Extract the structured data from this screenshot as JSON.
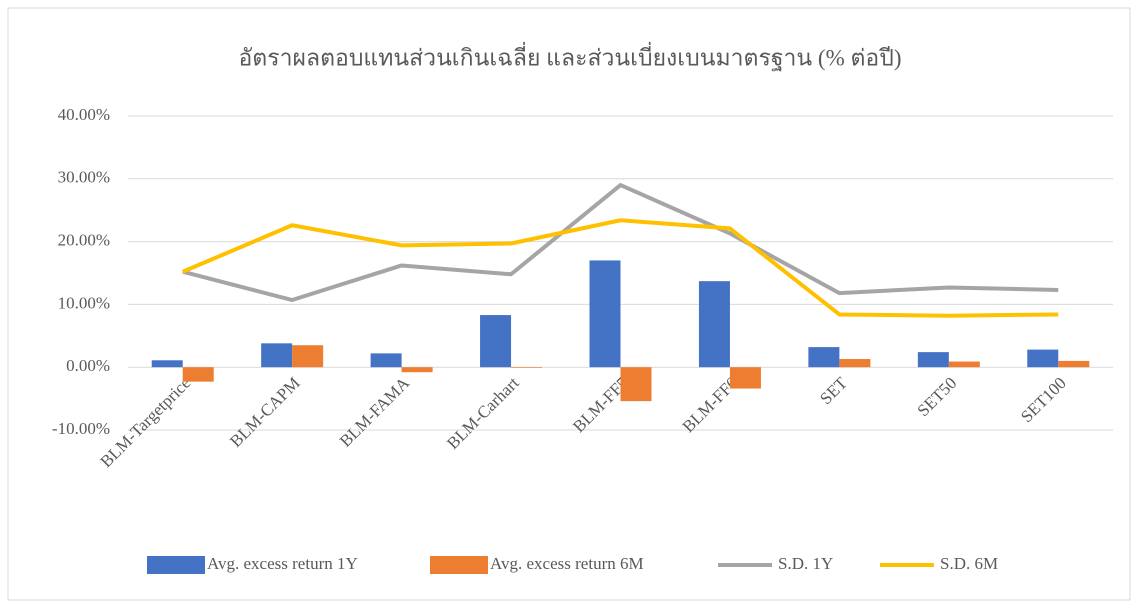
{
  "chart_data": {
    "type": "bar_line",
    "title": "อัตราผลตอบแทนส่วนเกินเฉลี่ย และส่วนเบี่ยงเบนมาตรฐาน (% ต่อปี)",
    "categories": [
      "BLM-Targetprice",
      "BLM-CAPM",
      "BLM-FAMA",
      "BLM-Carhart",
      "BLM-FF5",
      "BLM-FF6",
      "SET",
      "SET50",
      "SET100"
    ],
    "series": [
      {
        "name": "Avg. excess return 1Y",
        "type": "bar",
        "color": "#4472c4",
        "values": [
          1.1,
          3.8,
          2.2,
          8.3,
          17.0,
          13.7,
          3.2,
          2.4,
          2.8
        ]
      },
      {
        "name": "Avg. excess return 6M",
        "type": "bar",
        "color": "#ed7d31",
        "values": [
          -2.3,
          3.5,
          -0.8,
          -0.1,
          -5.4,
          -3.4,
          1.3,
          0.9,
          1.0
        ]
      },
      {
        "name": "S.D. 1Y",
        "type": "line",
        "color": "#a5a5a5",
        "values": [
          15.2,
          10.7,
          16.2,
          14.8,
          29.0,
          21.3,
          11.8,
          12.7,
          12.3
        ]
      },
      {
        "name": "S.D. 6M",
        "type": "line",
        "color": "#ffc000",
        "values": [
          15.2,
          22.6,
          19.4,
          19.7,
          23.4,
          22.1,
          8.4,
          8.2,
          8.4
        ]
      }
    ],
    "ylim": [
      -10,
      40
    ],
    "yticks": [
      {
        "value": -10,
        "label": "-10.00%"
      },
      {
        "value": 0,
        "label": "0.00%"
      },
      {
        "value": 10,
        "label": "10.00%"
      },
      {
        "value": 20,
        "label": "20.00%"
      },
      {
        "value": 30,
        "label": "30.00%"
      },
      {
        "value": 40,
        "label": "40.00%"
      }
    ],
    "grid": true,
    "legend": "bottom"
  }
}
